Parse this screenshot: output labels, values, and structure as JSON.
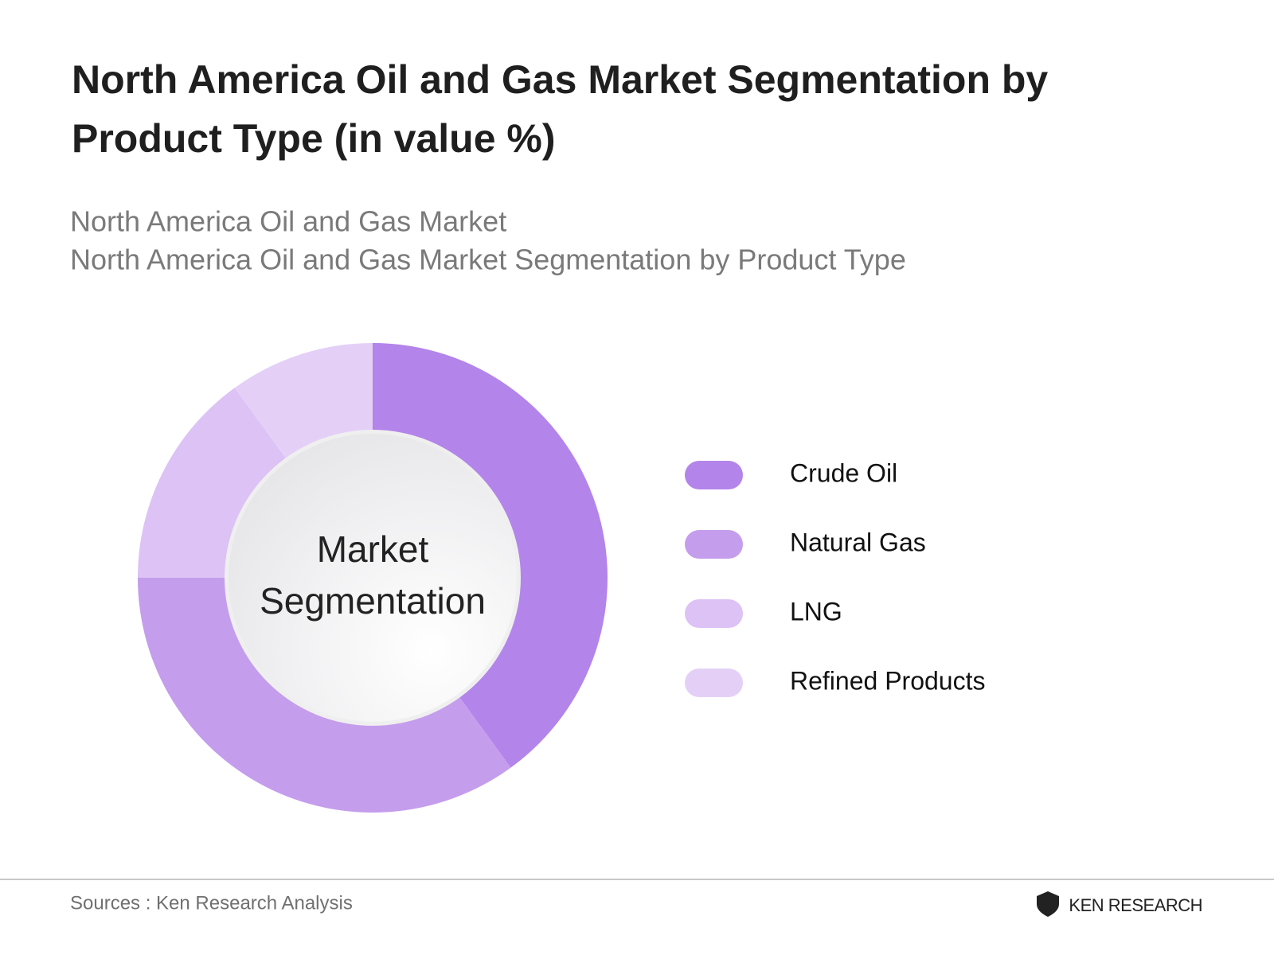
{
  "chart_data": {
    "type": "pie",
    "title": "North America Oil and Gas Market Segmentation by Product Type (in value %)",
    "subtitle": [
      "North America Oil and Gas Market",
      "North America Oil and Gas Market Segmentation by Product Type"
    ],
    "center_label": "Market Segmentation",
    "categories": [
      "Crude Oil",
      "Natural Gas",
      "LNG",
      "Refined Products"
    ],
    "values": [
      40,
      35,
      15,
      10
    ],
    "colors": [
      "#b384ea",
      "#c59ded",
      "#dcc2f5",
      "#e4d0f7"
    ],
    "legend": "right",
    "source": "Sources : Ken Research Analysis",
    "logo": "KEN RESEARCH"
  }
}
